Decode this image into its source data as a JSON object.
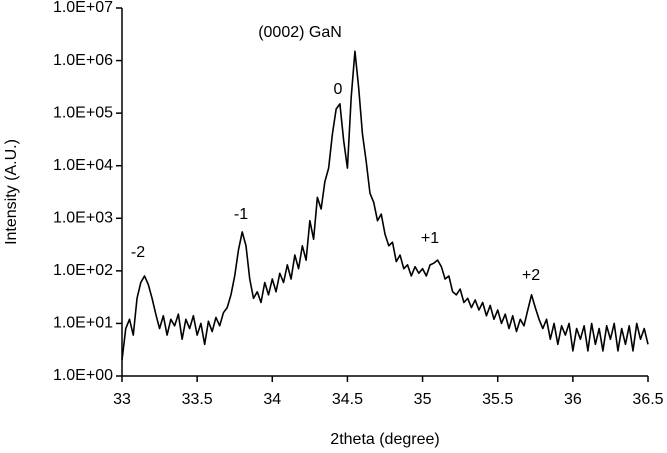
{
  "chart_data": {
    "type": "line",
    "x_label": "2theta (degree)",
    "y_label": "Intensity (A.U.)",
    "annotations": [
      "(0002) GaN",
      "0",
      "-1",
      "-2",
      "+1",
      "+2"
    ],
    "log_y": true,
    "grid": false,
    "xlim": [
      33,
      36.5
    ],
    "xticks": [
      33,
      33.5,
      34,
      34.5,
      35,
      35.5,
      36,
      36.5
    ],
    "ylim": [
      1,
      10000000
    ],
    "yticks": [
      {
        "value": 1,
        "label": "1.0E+00"
      },
      {
        "value": 10,
        "label": "1.0E+01"
      },
      {
        "value": 100,
        "label": "1.0E+02"
      },
      {
        "value": 1000,
        "label": "1.0E+03"
      },
      {
        "value": 10000,
        "label": "1.0E+04"
      },
      {
        "value": 100000,
        "label": "1.0E+05"
      },
      {
        "value": 1000000,
        "label": "1.0E+06"
      },
      {
        "value": 10000000,
        "label": "1.0E+07"
      }
    ],
    "x": [
      33.0,
      33.025,
      33.05,
      33.075,
      33.1,
      33.125,
      33.15,
      33.175,
      33.2,
      33.225,
      33.25,
      33.275,
      33.3,
      33.325,
      33.35,
      33.375,
      33.4,
      33.425,
      33.45,
      33.475,
      33.5,
      33.525,
      33.55,
      33.575,
      33.6,
      33.625,
      33.65,
      33.675,
      33.7,
      33.725,
      33.75,
      33.775,
      33.8,
      33.825,
      33.85,
      33.875,
      33.9,
      33.925,
      33.95,
      33.975,
      34.0,
      34.025,
      34.05,
      34.075,
      34.1,
      34.125,
      34.15,
      34.175,
      34.2,
      34.225,
      34.25,
      34.275,
      34.3,
      34.325,
      34.35,
      34.375,
      34.4,
      34.425,
      34.45,
      34.475,
      34.5,
      34.525,
      34.55,
      34.575,
      34.6,
      34.625,
      34.65,
      34.675,
      34.7,
      34.725,
      34.75,
      34.775,
      34.8,
      34.825,
      34.85,
      34.875,
      34.9,
      34.925,
      34.95,
      34.975,
      35.0,
      35.025,
      35.05,
      35.075,
      35.1,
      35.125,
      35.15,
      35.175,
      35.2,
      35.225,
      35.25,
      35.275,
      35.3,
      35.325,
      35.35,
      35.375,
      35.4,
      35.425,
      35.45,
      35.475,
      35.5,
      35.525,
      35.55,
      35.575,
      35.6,
      35.625,
      35.65,
      35.675,
      35.7,
      35.725,
      35.75,
      35.775,
      35.8,
      35.825,
      35.85,
      35.875,
      35.9,
      35.925,
      35.95,
      35.975,
      36.0,
      36.025,
      36.05,
      36.075,
      36.1,
      36.125,
      36.15,
      36.175,
      36.2,
      36.225,
      36.25,
      36.275,
      36.3,
      36.325,
      36.35,
      36.375,
      36.4,
      36.425,
      36.45,
      36.475,
      36.5
    ],
    "series": [
      {
        "color": "#000000",
        "values": [
          2,
          8,
          12,
          6,
          30,
          60,
          80,
          55,
          30,
          15,
          8,
          14,
          6,
          12,
          9,
          15,
          5,
          12,
          8,
          14,
          6,
          10,
          4,
          11,
          7,
          13,
          9,
          16,
          20,
          35,
          80,
          250,
          550,
          300,
          70,
          30,
          40,
          25,
          60,
          35,
          70,
          40,
          90,
          60,
          130,
          70,
          200,
          110,
          300,
          160,
          900,
          400,
          2500,
          1500,
          5000,
          9000,
          40000,
          120000,
          150000,
          30000,
          9000,
          200000,
          1500000,
          300000,
          40000,
          12000,
          3000,
          2000,
          900,
          1200,
          500,
          300,
          350,
          150,
          200,
          110,
          130,
          80,
          120,
          90,
          110,
          80,
          130,
          140,
          160,
          120,
          70,
          80,
          40,
          35,
          45,
          25,
          30,
          20,
          28,
          18,
          25,
          14,
          22,
          12,
          18,
          10,
          15,
          8,
          14,
          7,
          12,
          9,
          18,
          35,
          20,
          12,
          8,
          12,
          5,
          10,
          4,
          9,
          6,
          10,
          3,
          8,
          5,
          9,
          3,
          10,
          4,
          8,
          3,
          9,
          5,
          10,
          3,
          8,
          4,
          9,
          3,
          10,
          5,
          8,
          4
        ]
      }
    ]
  }
}
